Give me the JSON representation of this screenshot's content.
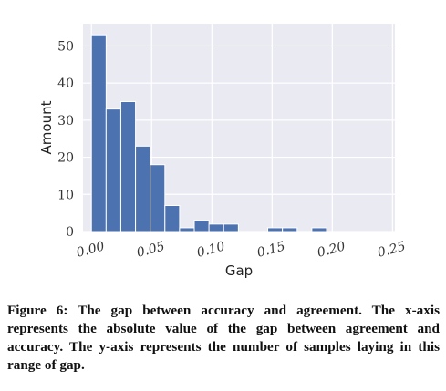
{
  "chart_data": {
    "type": "bar",
    "title": "",
    "xlabel": "Gap",
    "ylabel": "Amount",
    "xlim": [
      -0.007,
      0.252
    ],
    "ylim": [
      0,
      56
    ],
    "x_ticks": [
      "0.00",
      "0.05",
      "0.10",
      "0.15",
      "0.20",
      "0.25"
    ],
    "x_tick_values": [
      0.0,
      0.05,
      0.1,
      0.15,
      0.2,
      0.25
    ],
    "y_ticks": [
      "0",
      "10",
      "20",
      "30",
      "40",
      "50"
    ],
    "y_tick_values": [
      0,
      10,
      20,
      30,
      40,
      50
    ],
    "bin_width": 0.0122,
    "bins_start": [
      0.0,
      0.0122,
      0.0244,
      0.0366,
      0.0488,
      0.061,
      0.0732,
      0.0854,
      0.0976,
      0.1098,
      0.122,
      0.1342,
      0.1464,
      0.1586,
      0.1708,
      0.183,
      0.1952,
      0.2074,
      0.2196,
      0.2318
    ],
    "values": [
      53,
      33,
      35,
      23,
      18,
      7,
      1,
      3,
      2,
      2,
      0,
      0,
      1,
      1,
      0,
      1,
      0,
      0,
      0,
      0
    ],
    "grid": true,
    "colors": {
      "bar": "#4c72b0",
      "background": "#eaeaf2",
      "grid": "#ffffff"
    }
  },
  "caption": {
    "label": "Figure 6:",
    "text": "The gap between accuracy and agreement. The x-axis represents the absolute value of the gap between agreement and accuracy. The y-axis represents the number of samples laying in this range of gap."
  }
}
